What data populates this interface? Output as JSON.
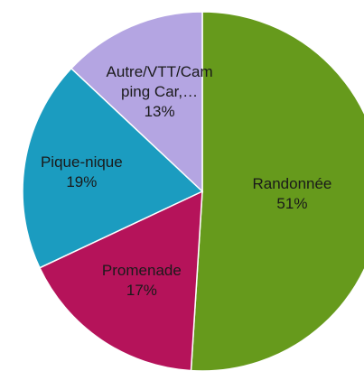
{
  "chart_data": {
    "type": "pie",
    "categories": [
      "Randonnée",
      "Promenade",
      "Pique-nique",
      "Autre/VTT/Camping Car,…"
    ],
    "values": [
      51,
      17,
      19,
      13
    ],
    "value_labels": [
      "51%",
      "17%",
      "19%",
      "13%"
    ],
    "colors": [
      "#669a1c",
      "#b5135a",
      "#1b9cc0",
      "#b4a5e2"
    ],
    "start_angle": 0,
    "direction": "clockwise"
  }
}
